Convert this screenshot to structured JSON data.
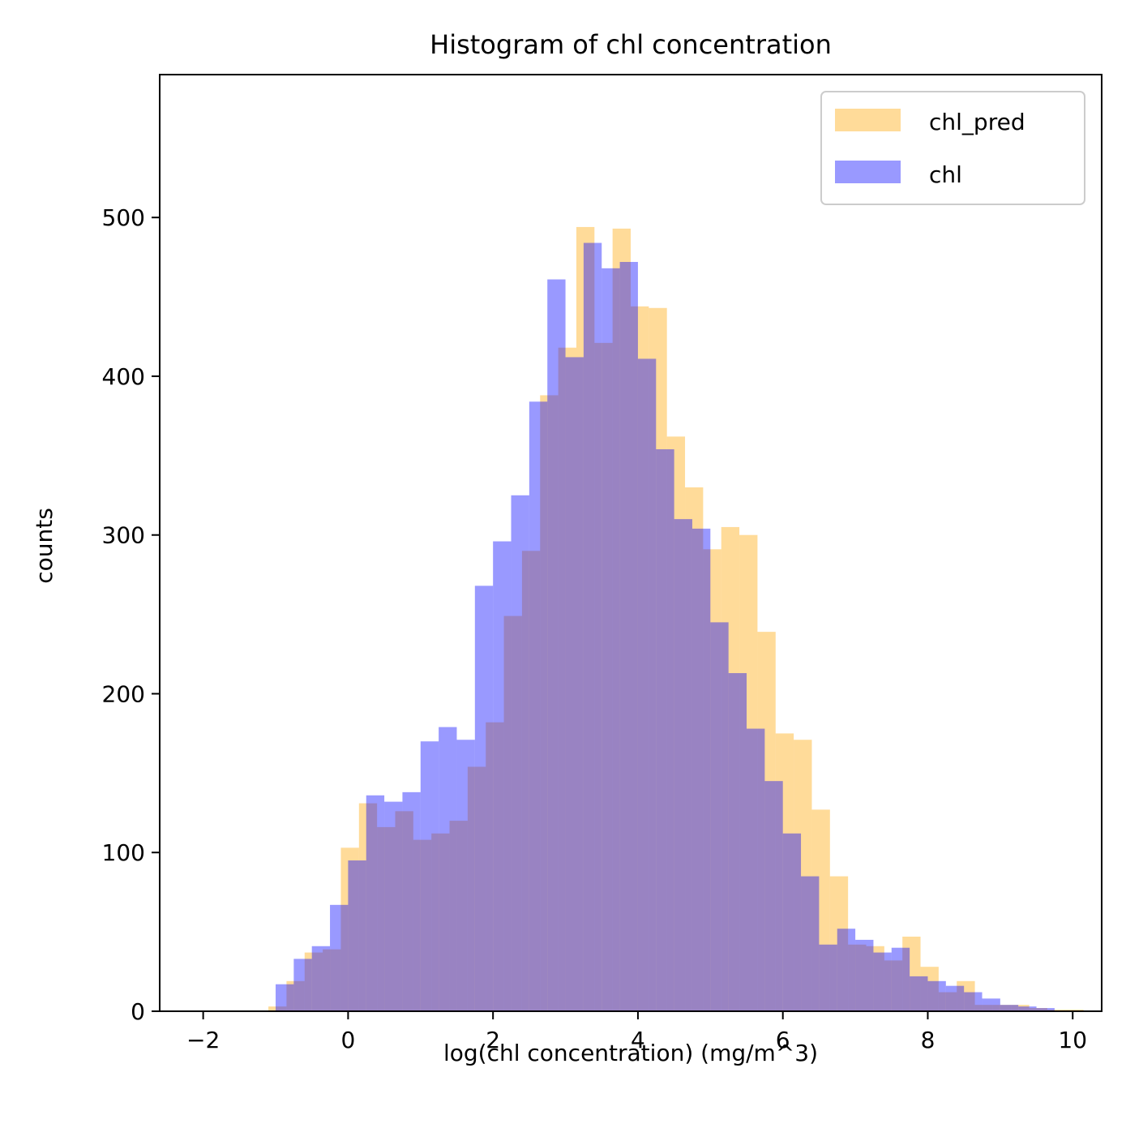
{
  "chart_data": {
    "type": "bar",
    "title": "Histogram of chl concentration",
    "xlabel": "log(chl concentration) (mg/m^3)",
    "ylabel": "counts",
    "xlim": [
      -2.6,
      10.4
    ],
    "ylim": [
      0,
      590
    ],
    "xticks": [
      -2,
      0,
      2,
      4,
      6,
      8,
      10
    ],
    "xtick_labels": [
      "−2",
      "0",
      "2",
      "4",
      "6",
      "8",
      "10"
    ],
    "yticks": [
      0,
      100,
      200,
      300,
      400,
      500
    ],
    "ytick_labels": [
      "0",
      "100",
      "200",
      "300",
      "400",
      "500"
    ],
    "grid": false,
    "legend": "top-right",
    "series": [
      {
        "name": "chl_pred",
        "color": "#ffa500",
        "alpha": 0.4,
        "bin_start": -1.1,
        "bin_width": 0.25,
        "values": [
          3,
          19,
          37,
          39,
          103,
          131,
          116,
          126,
          108,
          112,
          120,
          154,
          182,
          249,
          290,
          388,
          418,
          494,
          421,
          493,
          444,
          443,
          362,
          330,
          291,
          305,
          300,
          239,
          175,
          171,
          127,
          85,
          42,
          41,
          32,
          47,
          28,
          12,
          19,
          4,
          4,
          4,
          2,
          1,
          1
        ]
      },
      {
        "name": "chl",
        "color": "#0000ff",
        "alpha": 0.4,
        "bin_start": -1.0,
        "bin_width": 0.25,
        "values": [
          17,
          33,
          41,
          67,
          95,
          136,
          132,
          138,
          170,
          179,
          171,
          268,
          296,
          325,
          384,
          461,
          412,
          484,
          468,
          472,
          411,
          354,
          310,
          304,
          245,
          213,
          178,
          145,
          112,
          85,
          42,
          52,
          45,
          37,
          40,
          22,
          19,
          16,
          12,
          8,
          4,
          3,
          2
        ]
      }
    ]
  }
}
